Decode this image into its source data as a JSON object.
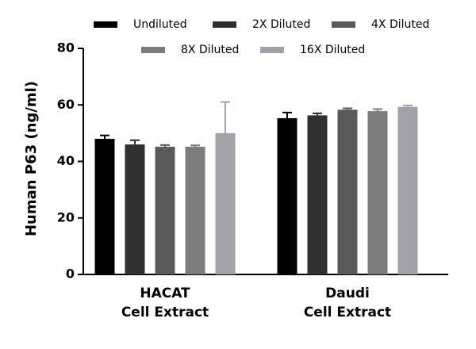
{
  "chart_data": {
    "type": "bar",
    "y_label": "Human P63 (ng/ml)",
    "categories": [
      "HACAT\nCell Extract",
      "Daudi\nCell Extract"
    ],
    "series": [
      {
        "name": "Undiluted",
        "color": "#000000",
        "values": [
          48,
          55.3
        ],
        "errors": [
          1.2,
          2
        ]
      },
      {
        "name": "2X Diluted",
        "color": "#303030",
        "values": [
          46,
          56.3
        ],
        "errors": [
          1.5,
          0.7
        ]
      },
      {
        "name": "4X Diluted",
        "color": "#5a5a5a",
        "values": [
          45.2,
          58.3
        ],
        "errors": [
          0.6,
          0.5
        ]
      },
      {
        "name": "8X Diluted",
        "color": "#7c7c7c",
        "values": [
          45.2,
          57.8
        ],
        "errors": [
          0.5,
          0.7
        ]
      },
      {
        "name": "16X Diluted",
        "color": "#a1a1a7",
        "values": [
          50,
          59.3
        ],
        "errors": [
          11,
          0.5
        ]
      }
    ],
    "ylim": [
      0,
      80
    ],
    "yticks": [
      0,
      20,
      40,
      60,
      80
    ],
    "grid": false,
    "legend": "top"
  }
}
